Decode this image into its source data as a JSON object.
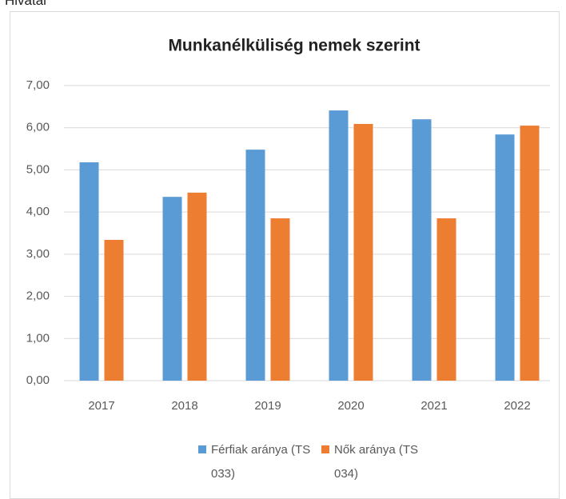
{
  "page_header": "Hivatal",
  "chart_data": {
    "type": "bar",
    "title": "Munkanélküliség nemek szerint",
    "categories": [
      "2017",
      "2018",
      "2019",
      "2020",
      "2021",
      "2022"
    ],
    "series": [
      {
        "name": "Férfiak aránya (TS 033)",
        "color": "#5b9bd5",
        "values": [
          5.18,
          4.36,
          5.48,
          6.41,
          6.2,
          5.84
        ]
      },
      {
        "name": "Nők aránya (TS 034)",
        "color": "#ed7d31",
        "values": [
          3.34,
          4.46,
          3.85,
          6.09,
          3.85,
          6.05
        ]
      }
    ],
    "ylim": [
      0,
      7
    ],
    "yticks": [
      {
        "value": 0,
        "label": "0,00"
      },
      {
        "value": 1,
        "label": "1,00"
      },
      {
        "value": 2,
        "label": "2,00"
      },
      {
        "value": 3,
        "label": "3,00"
      },
      {
        "value": 4,
        "label": "4,00"
      },
      {
        "value": 5,
        "label": "5,00"
      },
      {
        "value": 6,
        "label": "6,00"
      },
      {
        "value": 7,
        "label": "7,00"
      }
    ],
    "grid": true,
    "legend": "bottom"
  }
}
